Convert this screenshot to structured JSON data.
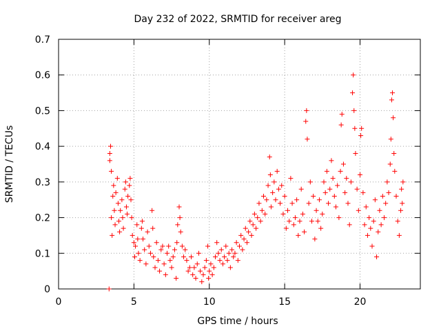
{
  "chart_data": {
    "type": "scatter",
    "title": "Day 232 of 2022, SRMTID for receiver areg",
    "xlabel": "GPS time / hours",
    "ylabel": "SRMTID / TECUs",
    "xlim": [
      0,
      24
    ],
    "ylim": [
      0,
      0.7
    ],
    "xticks": [
      0,
      5,
      10,
      15,
      20
    ],
    "yticks": [
      0,
      0.1,
      0.2,
      0.3,
      0.4,
      0.5,
      0.6,
      0.7
    ],
    "xtick_labels": [
      "0",
      "5",
      "10",
      "15",
      "20"
    ],
    "ytick_labels": [
      "0",
      "0.1",
      "0.2",
      "0.3",
      "0.4",
      "0.5",
      "0.6",
      "0.7"
    ],
    "grid": true,
    "marker": "+",
    "color": "#ff0000",
    "series": [
      {
        "name": "SRMTID",
        "points": [
          [
            3.35,
            0.0
          ],
          [
            3.4,
            0.36
          ],
          [
            3.4,
            0.38
          ],
          [
            3.45,
            0.4
          ],
          [
            3.5,
            0.33
          ],
          [
            3.5,
            0.2
          ],
          [
            3.55,
            0.15
          ],
          [
            3.6,
            0.26
          ],
          [
            3.65,
            0.29
          ],
          [
            3.7,
            0.22
          ],
          [
            3.75,
            0.18
          ],
          [
            3.8,
            0.27
          ],
          [
            3.9,
            0.31
          ],
          [
            3.95,
            0.24
          ],
          [
            4.0,
            0.19
          ],
          [
            4.05,
            0.16
          ],
          [
            4.1,
            0.22
          ],
          [
            4.2,
            0.25
          ],
          [
            4.25,
            0.2
          ],
          [
            4.3,
            0.17
          ],
          [
            4.4,
            0.28
          ],
          [
            4.45,
            0.3
          ],
          [
            4.5,
            0.23
          ],
          [
            4.55,
            0.21
          ],
          [
            4.6,
            0.26
          ],
          [
            4.7,
            0.29
          ],
          [
            4.75,
            0.31
          ],
          [
            4.8,
            0.25
          ],
          [
            4.85,
            0.2
          ],
          [
            4.9,
            0.15
          ],
          [
            5.0,
            0.13
          ],
          [
            5.05,
            0.09
          ],
          [
            5.1,
            0.12
          ],
          [
            5.2,
            0.18
          ],
          [
            5.25,
            0.14
          ],
          [
            5.3,
            0.1
          ],
          [
            5.4,
            0.08
          ],
          [
            5.5,
            0.17
          ],
          [
            5.55,
            0.19
          ],
          [
            5.6,
            0.14
          ],
          [
            5.7,
            0.11
          ],
          [
            5.8,
            0.07
          ],
          [
            5.9,
            0.16
          ],
          [
            6.0,
            0.12
          ],
          [
            6.1,
            0.1
          ],
          [
            6.2,
            0.22
          ],
          [
            6.25,
            0.17
          ],
          [
            6.3,
            0.09
          ],
          [
            6.4,
            0.06
          ],
          [
            6.5,
            0.13
          ],
          [
            6.6,
            0.08
          ],
          [
            6.7,
            0.05
          ],
          [
            6.8,
            0.11
          ],
          [
            6.9,
            0.12
          ],
          [
            7.0,
            0.07
          ],
          [
            7.1,
            0.04
          ],
          [
            7.2,
            0.1
          ],
          [
            7.3,
            0.12
          ],
          [
            7.4,
            0.08
          ],
          [
            7.5,
            0.06
          ],
          [
            7.6,
            0.09
          ],
          [
            7.7,
            0.11
          ],
          [
            7.8,
            0.03
          ],
          [
            7.85,
            0.13
          ],
          [
            7.9,
            0.18
          ],
          [
            8.0,
            0.23
          ],
          [
            8.05,
            0.2
          ],
          [
            8.1,
            0.16
          ],
          [
            8.2,
            0.12
          ],
          [
            8.3,
            0.09
          ],
          [
            8.4,
            0.11
          ],
          [
            8.5,
            0.08
          ],
          [
            8.6,
            0.05
          ],
          [
            8.7,
            0.06
          ],
          [
            8.8,
            0.09
          ],
          [
            8.9,
            0.04
          ],
          [
            9.0,
            0.06
          ],
          [
            9.1,
            0.03
          ],
          [
            9.2,
            0.07
          ],
          [
            9.3,
            0.1
          ],
          [
            9.4,
            0.05
          ],
          [
            9.5,
            0.02
          ],
          [
            9.6,
            0.04
          ],
          [
            9.7,
            0.06
          ],
          [
            9.8,
            0.08
          ],
          [
            9.9,
            0.12
          ],
          [
            9.95,
            0.03
          ],
          [
            10.0,
            0.05
          ],
          [
            10.1,
            0.07
          ],
          [
            10.2,
            0.04
          ],
          [
            10.3,
            0.06
          ],
          [
            10.4,
            0.09
          ],
          [
            10.5,
            0.13
          ],
          [
            10.6,
            0.1
          ],
          [
            10.7,
            0.08
          ],
          [
            10.8,
            0.11
          ],
          [
            10.9,
            0.07
          ],
          [
            11.0,
            0.09
          ],
          [
            11.1,
            0.12
          ],
          [
            11.2,
            0.08
          ],
          [
            11.3,
            0.1
          ],
          [
            11.4,
            0.06
          ],
          [
            11.5,
            0.11
          ],
          [
            11.6,
            0.09
          ],
          [
            11.7,
            0.1
          ],
          [
            11.8,
            0.13
          ],
          [
            11.9,
            0.08
          ],
          [
            12.0,
            0.12
          ],
          [
            12.1,
            0.15
          ],
          [
            12.2,
            0.11
          ],
          [
            12.3,
            0.14
          ],
          [
            12.4,
            0.17
          ],
          [
            12.5,
            0.13
          ],
          [
            12.6,
            0.16
          ],
          [
            12.7,
            0.19
          ],
          [
            12.8,
            0.15
          ],
          [
            12.9,
            0.18
          ],
          [
            13.0,
            0.21
          ],
          [
            13.1,
            0.17
          ],
          [
            13.2,
            0.2
          ],
          [
            13.3,
            0.24
          ],
          [
            13.4,
            0.19
          ],
          [
            13.5,
            0.22
          ],
          [
            13.6,
            0.26
          ],
          [
            13.7,
            0.21
          ],
          [
            13.8,
            0.25
          ],
          [
            13.9,
            0.29
          ],
          [
            14.0,
            0.37
          ],
          [
            14.05,
            0.32
          ],
          [
            14.1,
            0.23
          ],
          [
            14.2,
            0.27
          ],
          [
            14.3,
            0.3
          ],
          [
            14.4,
            0.25
          ],
          [
            14.5,
            0.33
          ],
          [
            14.6,
            0.28
          ],
          [
            14.7,
            0.24
          ],
          [
            14.8,
            0.29
          ],
          [
            14.9,
            0.21
          ],
          [
            15.0,
            0.26
          ],
          [
            15.1,
            0.17
          ],
          [
            15.2,
            0.22
          ],
          [
            15.3,
            0.19
          ],
          [
            15.4,
            0.31
          ],
          [
            15.5,
            0.24
          ],
          [
            15.6,
            0.18
          ],
          [
            15.7,
            0.2
          ],
          [
            15.8,
            0.25
          ],
          [
            15.9,
            0.15
          ],
          [
            16.0,
            0.19
          ],
          [
            16.1,
            0.28
          ],
          [
            16.2,
            0.21
          ],
          [
            16.3,
            0.16
          ],
          [
            16.4,
            0.47
          ],
          [
            16.45,
            0.5
          ],
          [
            16.5,
            0.42
          ],
          [
            16.6,
            0.24
          ],
          [
            16.7,
            0.3
          ],
          [
            16.8,
            0.19
          ],
          [
            16.9,
            0.26
          ],
          [
            17.0,
            0.14
          ],
          [
            17.1,
            0.22
          ],
          [
            17.2,
            0.19
          ],
          [
            17.3,
            0.25
          ],
          [
            17.4,
            0.17
          ],
          [
            17.5,
            0.21
          ],
          [
            17.6,
            0.3
          ],
          [
            17.7,
            0.27
          ],
          [
            17.8,
            0.33
          ],
          [
            17.9,
            0.24
          ],
          [
            18.0,
            0.28
          ],
          [
            18.1,
            0.36
          ],
          [
            18.2,
            0.31
          ],
          [
            18.3,
            0.26
          ],
          [
            18.4,
            0.23
          ],
          [
            18.5,
            0.29
          ],
          [
            18.6,
            0.2
          ],
          [
            18.7,
            0.33
          ],
          [
            18.75,
            0.46
          ],
          [
            18.8,
            0.49
          ],
          [
            18.9,
            0.35
          ],
          [
            19.0,
            0.27
          ],
          [
            19.1,
            0.31
          ],
          [
            19.2,
            0.24
          ],
          [
            19.3,
            0.18
          ],
          [
            19.4,
            0.3
          ],
          [
            19.5,
            0.55
          ],
          [
            19.55,
            0.6
          ],
          [
            19.6,
            0.5
          ],
          [
            19.65,
            0.45
          ],
          [
            19.7,
            0.38
          ],
          [
            19.8,
            0.28
          ],
          [
            19.9,
            0.22
          ],
          [
            20.0,
            0.32
          ],
          [
            20.05,
            0.43
          ],
          [
            20.1,
            0.45
          ],
          [
            20.2,
            0.27
          ],
          [
            20.3,
            0.18
          ],
          [
            20.4,
            0.23
          ],
          [
            20.5,
            0.15
          ],
          [
            20.6,
            0.2
          ],
          [
            20.7,
            0.17
          ],
          [
            20.8,
            0.12
          ],
          [
            20.9,
            0.19
          ],
          [
            21.0,
            0.25
          ],
          [
            21.1,
            0.09
          ],
          [
            21.2,
            0.16
          ],
          [
            21.3,
            0.22
          ],
          [
            21.4,
            0.18
          ],
          [
            21.5,
            0.26
          ],
          [
            21.6,
            0.2
          ],
          [
            21.7,
            0.24
          ],
          [
            21.8,
            0.3
          ],
          [
            21.9,
            0.27
          ],
          [
            22.0,
            0.35
          ],
          [
            22.05,
            0.42
          ],
          [
            22.1,
            0.53
          ],
          [
            22.15,
            0.55
          ],
          [
            22.2,
            0.48
          ],
          [
            22.25,
            0.38
          ],
          [
            22.3,
            0.33
          ],
          [
            22.4,
            0.26
          ],
          [
            22.5,
            0.19
          ],
          [
            22.6,
            0.15
          ],
          [
            22.7,
            0.22
          ],
          [
            22.75,
            0.28
          ],
          [
            22.8,
            0.24
          ],
          [
            22.85,
            0.3
          ]
        ]
      }
    ]
  }
}
